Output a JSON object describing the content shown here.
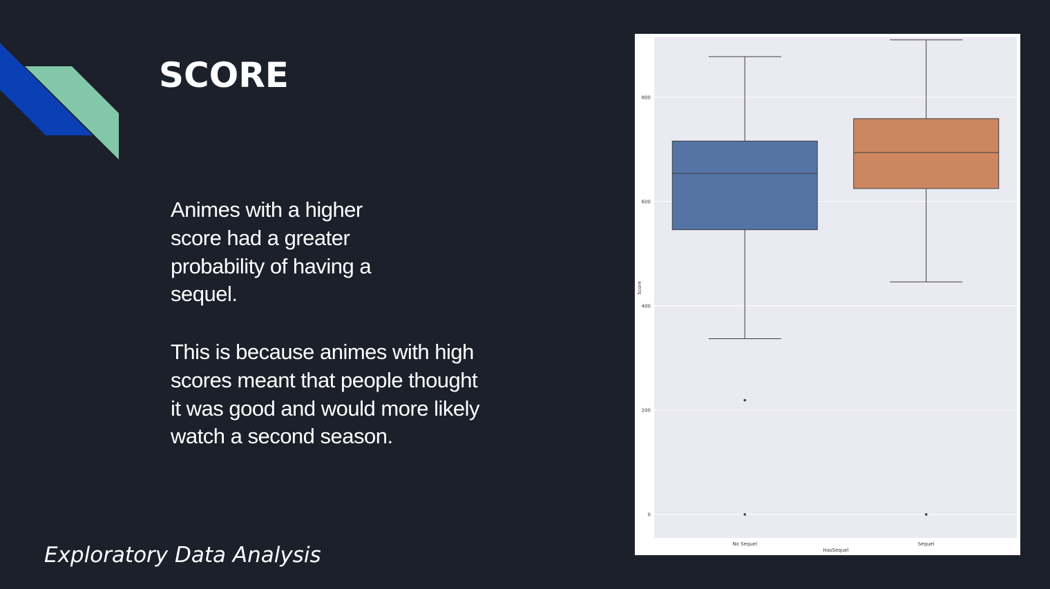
{
  "slide": {
    "title": "SCORE",
    "paragraph_1": "Animes with a higher score had a greater probability of having a sequel.",
    "paragraph_2": "This is because animes with high scores meant that people thought it was good and would more likely watch a second season.",
    "footer": "Exploratory Data Analysis"
  },
  "colors": {
    "background": "#1b202b",
    "accent_blue": "#0a3fb5",
    "accent_green": "#82c8a8",
    "box_no_sequel": "#5574a6",
    "box_sequel": "#cc8660",
    "plot_bg": "#eaeaf2"
  },
  "chart_data": {
    "type": "box",
    "title": "",
    "xlabel": "HasSequel",
    "ylabel": "Score",
    "categories": [
      "No Sequel",
      "Sequel"
    ],
    "ylim": [
      -45,
      915
    ],
    "yticks": [
      0,
      200,
      400,
      600,
      800
    ],
    "grid": true,
    "boxes": [
      {
        "category": "No Sequel",
        "whisker_low": 337,
        "q1": 546,
        "median": 654,
        "q3": 716,
        "whisker_high": 878,
        "outliers": [
          219,
          0
        ]
      },
      {
        "category": "Sequel",
        "whisker_low": 446,
        "q1": 625,
        "median": 694,
        "q3": 759,
        "whisker_high": 910,
        "outliers": [
          0
        ]
      }
    ]
  }
}
